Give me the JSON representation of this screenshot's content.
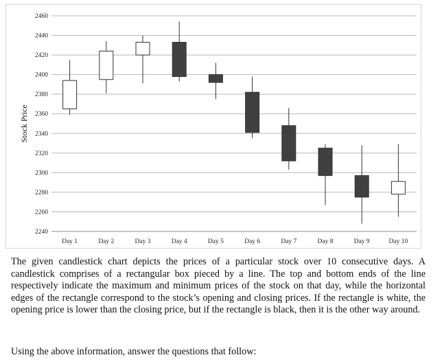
{
  "chart_data": {
    "type": "candlestick",
    "title": "",
    "xlabel": "",
    "ylabel": "Stock Price",
    "ylim": [
      2240,
      2460
    ],
    "yticks": [
      2240,
      2260,
      2280,
      2300,
      2320,
      2340,
      2360,
      2380,
      2400,
      2420,
      2440,
      2460
    ],
    "grid": "horizontal",
    "categories": [
      "Day 1",
      "Day 2",
      "Day 3",
      "Day 4",
      "Day 5",
      "Day 6",
      "Day 7",
      "Day 8",
      "Day 9",
      "Day 10"
    ],
    "open": [
      2365,
      2395,
      2420,
      2433,
      2400,
      2382,
      2348,
      2325,
      2297,
      2278
    ],
    "close": [
      2394,
      2424,
      2433,
      2398,
      2392,
      2341,
      2312,
      2297,
      2275,
      2291
    ],
    "high": [
      2415,
      2434,
      2440,
      2454,
      2412,
      2398,
      2366,
      2329,
      2328,
      2329
    ],
    "low": [
      2359,
      2381,
      2391,
      2393,
      2375,
      2335,
      2303,
      2267,
      2248,
      2255
    ],
    "colors": {
      "up": "#ffffff",
      "down": "#404040",
      "outline": "#333333",
      "grid": "#b8b8b8"
    }
  },
  "text": {
    "paragraph1": "The given candlestick chart depicts the prices of a particular stock over 10 consecutive days. A candlestick comprises of a rectangular box pieced by a line. The top and bottom ends of the line respectively indicate the maximum and minimum prices of the stock on that day, while the horizontal edges of the rectangle correspond to the stock’s opening and closing prices. If the rectangle is white, the opening price is lower than the closing price, but if the rectangle is black, then it is the other way around.",
    "paragraph2": "Using the above information, answer the questions that follow:"
  }
}
